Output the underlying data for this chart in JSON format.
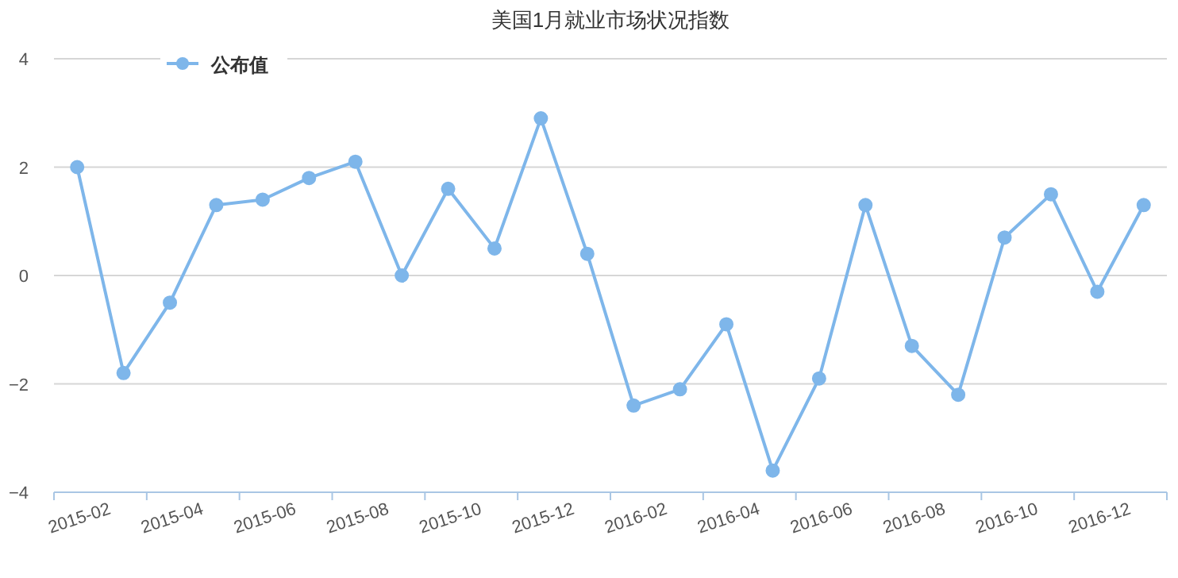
{
  "chart_data": {
    "type": "line",
    "title": "美国1月就业市场状况指数",
    "categories": [
      "2015-02",
      null,
      "2015-04",
      null,
      "2015-06",
      null,
      "2015-08",
      null,
      "2015-10",
      null,
      "2015-12",
      null,
      "2016-02",
      null,
      "2016-04",
      null,
      "2016-06",
      null,
      "2016-08",
      null,
      "2016-10",
      null,
      "2016-12",
      null
    ],
    "series": [
      {
        "name": "公布值",
        "color": "#7eb6ea",
        "values": [
          2.0,
          -1.8,
          -0.5,
          1.3,
          1.4,
          1.8,
          2.1,
          0.0,
          1.6,
          0.5,
          2.9,
          0.4,
          -2.4,
          -2.1,
          -0.9,
          -3.6,
          -1.9,
          1.3,
          -1.3,
          -2.2,
          0.7,
          1.5,
          -0.3,
          1.3
        ]
      }
    ],
    "ylim": [
      -4,
      4
    ],
    "yticks": [
      -4,
      -2,
      0,
      2,
      4
    ],
    "grid": "y",
    "legend": "top left",
    "marker": "circle",
    "line_style": "solid"
  }
}
